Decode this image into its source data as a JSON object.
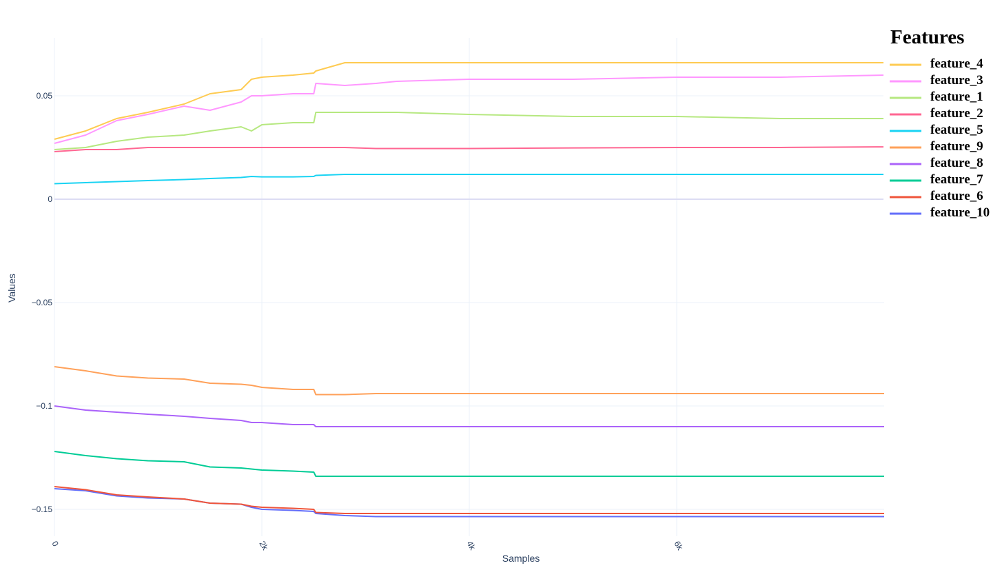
{
  "chart_data": {
    "type": "line",
    "title": "",
    "xlabel": "Samples",
    "ylabel": "Values",
    "xlim": [
      0,
      8000
    ],
    "ylim": [
      -0.163,
      0.078
    ],
    "x_ticks": [
      {
        "value": 0,
        "label": "0"
      },
      {
        "value": 2000,
        "label": "2k"
      },
      {
        "value": 4000,
        "label": "4k"
      },
      {
        "value": 6000,
        "label": "6k"
      }
    ],
    "y_ticks": [
      {
        "value": 0.05,
        "label": "0.05"
      },
      {
        "value": 0,
        "label": "0"
      },
      {
        "value": -0.05,
        "label": "−0.05"
      },
      {
        "value": -0.1,
        "label": "−0.1"
      },
      {
        "value": -0.15,
        "label": "−0.15"
      }
    ],
    "grid": true,
    "legend": {
      "title": "Features",
      "placement": "top-right"
    },
    "x": [
      0,
      300,
      600,
      900,
      1250,
      1500,
      1800,
      1900,
      2000,
      2300,
      2500,
      2520,
      2800,
      3100,
      3300,
      4000,
      5000,
      6000,
      7000,
      8000
    ],
    "series": [
      {
        "name": "feature_4",
        "color": "#FECB52",
        "values": [
          0.029,
          0.033,
          0.039,
          0.042,
          0.046,
          0.051,
          0.053,
          0.058,
          0.059,
          0.06,
          0.061,
          0.062,
          0.066,
          0.066,
          0.066,
          0.066,
          0.066,
          0.066,
          0.066,
          0.066
        ]
      },
      {
        "name": "feature_3",
        "color": "#FF97FF",
        "values": [
          0.027,
          0.031,
          0.038,
          0.041,
          0.045,
          0.043,
          0.047,
          0.05,
          0.05,
          0.051,
          0.051,
          0.056,
          0.055,
          0.056,
          0.057,
          0.058,
          0.058,
          0.059,
          0.059,
          0.06
        ]
      },
      {
        "name": "feature_1",
        "color": "#B6E880",
        "values": [
          0.024,
          0.025,
          0.028,
          0.03,
          0.031,
          0.033,
          0.035,
          0.033,
          0.036,
          0.037,
          0.037,
          0.042,
          0.042,
          0.042,
          0.042,
          0.041,
          0.04,
          0.04,
          0.039,
          0.039
        ]
      },
      {
        "name": "feature_2",
        "color": "#FF6692",
        "values": [
          0.023,
          0.024,
          0.024,
          0.025,
          0.025,
          0.025,
          0.025,
          0.025,
          0.025,
          0.025,
          0.025,
          0.025,
          0.025,
          0.0245,
          0.0245,
          0.0245,
          0.0248,
          0.025,
          0.025,
          0.0253
        ]
      },
      {
        "name": "feature_5",
        "color": "#19D3F3",
        "values": [
          0.0075,
          0.008,
          0.0085,
          0.009,
          0.0095,
          0.01,
          0.0105,
          0.011,
          0.0108,
          0.0108,
          0.011,
          0.0115,
          0.012,
          0.012,
          0.012,
          0.012,
          0.012,
          0.012,
          0.012,
          0.012
        ]
      },
      {
        "name": "feature_9",
        "color": "#FFA15A",
        "values": [
          -0.081,
          -0.083,
          -0.0855,
          -0.0865,
          -0.087,
          -0.089,
          -0.0895,
          -0.09,
          -0.091,
          -0.092,
          -0.092,
          -0.0945,
          -0.0945,
          -0.094,
          -0.094,
          -0.094,
          -0.094,
          -0.094,
          -0.094,
          -0.094
        ]
      },
      {
        "name": "feature_8",
        "color": "#AB63FA",
        "values": [
          -0.1,
          -0.102,
          -0.103,
          -0.104,
          -0.105,
          -0.106,
          -0.107,
          -0.108,
          -0.108,
          -0.109,
          -0.109,
          -0.11,
          -0.11,
          -0.11,
          -0.11,
          -0.11,
          -0.11,
          -0.11,
          -0.11,
          -0.11
        ]
      },
      {
        "name": "feature_7",
        "color": "#00CC96",
        "values": [
          -0.122,
          -0.124,
          -0.1255,
          -0.1265,
          -0.127,
          -0.1295,
          -0.13,
          -0.1305,
          -0.131,
          -0.1315,
          -0.132,
          -0.134,
          -0.134,
          -0.134,
          -0.134,
          -0.134,
          -0.134,
          -0.134,
          -0.134,
          -0.134
        ]
      },
      {
        "name": "feature_6",
        "color": "#EF553B",
        "values": [
          -0.139,
          -0.1405,
          -0.143,
          -0.144,
          -0.145,
          -0.147,
          -0.1475,
          -0.1485,
          -0.149,
          -0.1495,
          -0.15,
          -0.1515,
          -0.152,
          -0.152,
          -0.152,
          -0.152,
          -0.152,
          -0.152,
          -0.152,
          -0.152
        ]
      },
      {
        "name": "feature_10",
        "color": "#636EFA",
        "values": [
          -0.14,
          -0.141,
          -0.1435,
          -0.1445,
          -0.145,
          -0.147,
          -0.1475,
          -0.149,
          -0.15,
          -0.1505,
          -0.151,
          -0.152,
          -0.153,
          -0.1535,
          -0.1535,
          -0.1535,
          -0.1535,
          -0.1535,
          -0.1535,
          -0.1535
        ]
      }
    ]
  }
}
